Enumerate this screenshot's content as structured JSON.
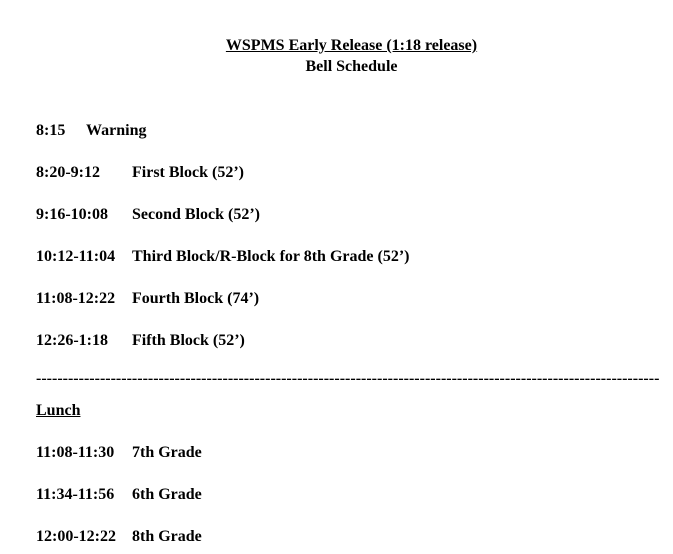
{
  "title": {
    "line1": "WSPMS Early Release (1:18 release)",
    "line2": "Bell Schedule"
  },
  "warning": {
    "time": "8:15",
    "label": "Warning"
  },
  "blocks": [
    {
      "time": "8:20-9:12",
      "label": "First Block (52’)"
    },
    {
      "time": "9:16-10:08",
      "label": "Second Block (52’)"
    },
    {
      "time": "10:12-11:04",
      "label": "Third Block/R-Block for 8th Grade (52’)"
    },
    {
      "time": "11:08-12:22",
      "label": "Fourth Block  (74’)"
    },
    {
      "time": "12:26-1:18",
      "label": "Fifth Block (52’)"
    }
  ],
  "divider": "---------------------------------------------------------------------------------------------------------------------",
  "lunch": {
    "heading": "Lunch",
    "rows": [
      {
        "time": "11:08-11:30",
        "label": "7th Grade"
      },
      {
        "time": "11:34-11:56",
        "label": "6th Grade"
      },
      {
        "time": "12:00-12:22",
        "label": "8th Grade"
      }
    ]
  }
}
